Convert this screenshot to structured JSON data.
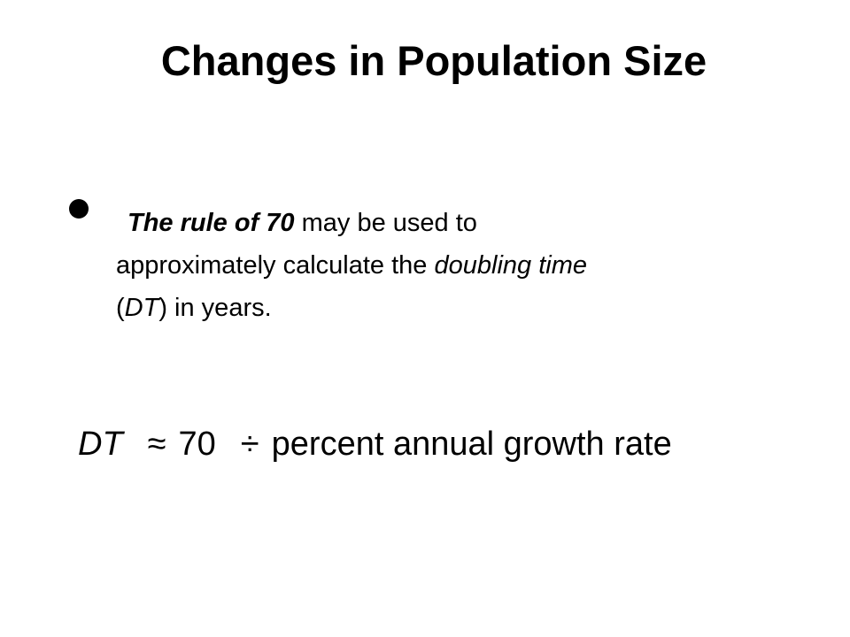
{
  "slide": {
    "title": "Changes in Population Size",
    "bullet": {
      "emphasis": "The rule of 70",
      "part1": " may be used to",
      "part2": "approximately calculate the ",
      "term": "doubling time",
      "abbr_open": "(",
      "abbr": "DT",
      "abbr_close": ") in years."
    },
    "formula": {
      "lhs": "DT",
      "approx": "≈",
      "constant": "70",
      "divide": "÷",
      "rhs": "percent annual growth rate"
    }
  }
}
